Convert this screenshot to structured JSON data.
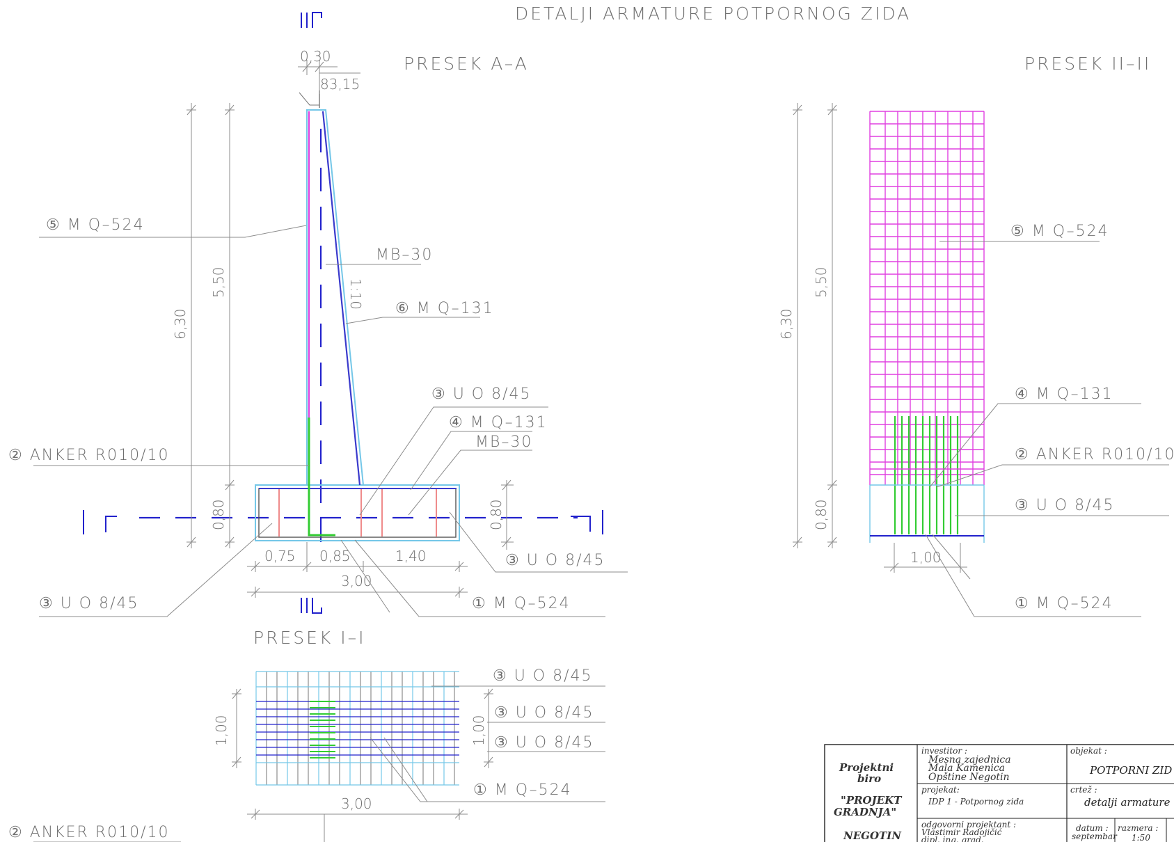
{
  "drawing": {
    "title": "DETALJI ARMATURE POTPORNOG ZIDA",
    "section_markers": {
      "top": "II",
      "bottom": "II",
      "left": "I",
      "right": "I"
    },
    "colors": {
      "concrete": "#74c7e8",
      "mesh_q524": "#e040e0",
      "anchor": "#33cc33",
      "stirrup": "#ef8b8b",
      "section_line": "#2222cc",
      "leader": "#8c8c8c"
    }
  },
  "section_aa": {
    "title": "PRESEK A–A",
    "dims": {
      "top_width": "0,30",
      "angle": "83,15",
      "total_height": "6,30",
      "wall_height": "5,50",
      "base_left": "0,80",
      "base_right": "0,80",
      "toe": "0,75",
      "stem": "0,85",
      "heel": "1,40",
      "base_width": "3,00",
      "slope": "1:10"
    },
    "labels": {
      "mesh_front": "⑤  M Q–524",
      "concrete_wall": "MB–30",
      "mesh_back": "⑥  M Q–131",
      "stirrup_top": "③  U  O  8/45",
      "mesh_base": "④  M  Q–131",
      "concrete_base": "MB–30",
      "anchor": "② ANKER R010/10",
      "stirrup_right": "③  U  O  8/45",
      "stirrup_left": "③  U  O  8/45",
      "mesh_bottom": "①  M  Q–524"
    }
  },
  "section_ii": {
    "title": "PRESEK II–II",
    "dims": {
      "total_height": "6,30",
      "wall_height": "5,50",
      "base_height": "0,80",
      "width": "1,00"
    },
    "labels": {
      "mesh_front": "⑤  M  Q–524",
      "mesh_base": "④  M  Q–131",
      "anchor": "② ANKER R010/10",
      "stirrup": "③  U  O  8/45",
      "mesh_bottom": "①  M  Q–524"
    }
  },
  "section_i": {
    "title": "PRESEK I–I",
    "dims": {
      "height_left": "1,00",
      "height_right": "1,00",
      "width": "3,00"
    },
    "labels": {
      "stirrup_1": "③  U  O  8/45",
      "stirrup_2": "③  U  O  8/45",
      "stirrup_3": "③  U  O  8/45",
      "mesh": "①  M  Q–524",
      "anchor": "② ANKER R010/10"
    }
  },
  "title_block": {
    "firm_line1": "Projektni",
    "firm_line2": "biro",
    "firm_line3": "\"PROJEKT",
    "firm_line4": "GRADNJA\"",
    "firm_line5": "NEGOTIN",
    "investor_label": "investitor :",
    "investor_1": "Mesna zajednica",
    "investor_2": "Mala Kamenica",
    "investor_3": "Opštine Negotin",
    "project_label": "projekat:",
    "project_value": "IDP     1 - Potpornog zida",
    "responsible_label": "odgovorni projektant :",
    "responsible_name": "Vlastimir Radojičić",
    "responsible_title": "dipl. ing. grad.",
    "object_label": "objekat :",
    "object_value": "POTPORNI ZID",
    "drawing_label": "crtež :",
    "drawing_value": "detalji  armature",
    "date_label": "datum :",
    "date_value": "septembar",
    "scale_label": "razmera :",
    "scale_value": "1:50"
  }
}
